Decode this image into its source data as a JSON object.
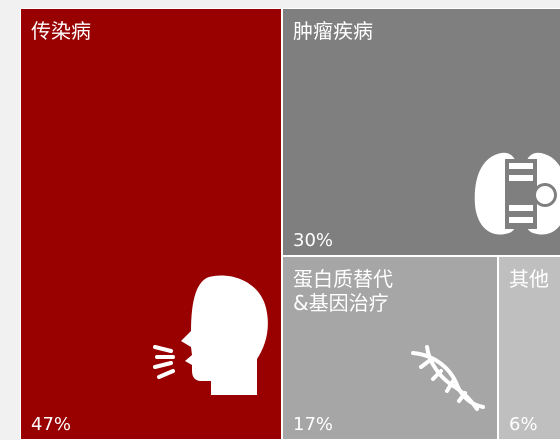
{
  "chart_data": {
    "type": "treemap",
    "items": [
      {
        "name": "传染病",
        "label": "47%",
        "value": 47,
        "color": "#990000",
        "icon": "person-coughing-icon"
      },
      {
        "name": "肿瘤疾病",
        "label": "30%",
        "value": 30,
        "color": "#7f7f7f",
        "icon": "lungs-icon"
      },
      {
        "name": "蛋白质替代\n&基因治疗",
        "label": "17%",
        "value": 17,
        "color": "#a6a6a6",
        "icon": "dna-icon"
      },
      {
        "name": "其他",
        "label": "6%",
        "value": 6,
        "color": "#bfbfbf",
        "icon": ""
      }
    ]
  }
}
